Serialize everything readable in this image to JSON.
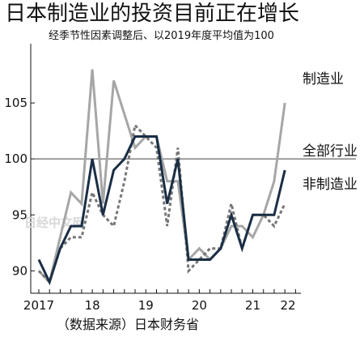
{
  "title": "日本制造业的投资目前正在增长",
  "subtitle": "经季节性因素调整后、以2019年度平均值为100",
  "source": "（数据来源）日本财务省",
  "watermark": "日经中文网",
  "chart_data": {
    "type": "line",
    "title": "日本制造业的投资目前正在增长",
    "subtitle": "经季节性因素调整后、以2019年度平均值为100",
    "xlabel": "",
    "ylabel": "",
    "ylim": [
      88,
      110
    ],
    "yticks": [
      90,
      95,
      100,
      105
    ],
    "xlim": [
      0,
      24.5
    ],
    "x": [
      0,
      1,
      2,
      3,
      4,
      5,
      6,
      7,
      8,
      9,
      10,
      11,
      12,
      13,
      14,
      15,
      16,
      17,
      18,
      19,
      20,
      21,
      22,
      23
    ],
    "xticks": [
      {
        "x": 0,
        "label": "2017"
      },
      {
        "x": 5,
        "label": "18"
      },
      {
        "x": 10,
        "label": "19"
      },
      {
        "x": 15,
        "label": "20"
      },
      {
        "x": 20,
        "label": "21"
      },
      {
        "x": 25,
        "label": "22"
      }
    ],
    "reference_line": 100,
    "grid": false,
    "series": [
      {
        "name": "制造业",
        "color": "#a6a6a6",
        "dash": "solid",
        "values": [
          90,
          89,
          93,
          97,
          96,
          108,
          96,
          107,
          104,
          101,
          102,
          102,
          98,
          98,
          91,
          92,
          91,
          92,
          94,
          94,
          93,
          95,
          98,
          105
        ]
      },
      {
        "name": "全部行业",
        "color": "#1a2e44",
        "dash": "solid",
        "values": [
          91,
          89,
          92,
          94,
          94,
          100,
          95,
          99,
          100,
          102,
          102,
          102,
          96,
          100,
          91,
          91,
          91,
          92,
          95,
          92,
          95,
          95,
          95,
          99
        ]
      },
      {
        "name": "非制造业",
        "color": "#777777",
        "dash": "dashed",
        "values": [
          90,
          89,
          92,
          93,
          93,
          97,
          95,
          94,
          98,
          103,
          102,
          101,
          94,
          101,
          90,
          91,
          92,
          92,
          96,
          92,
          95,
          95,
          94,
          96
        ]
      }
    ]
  }
}
